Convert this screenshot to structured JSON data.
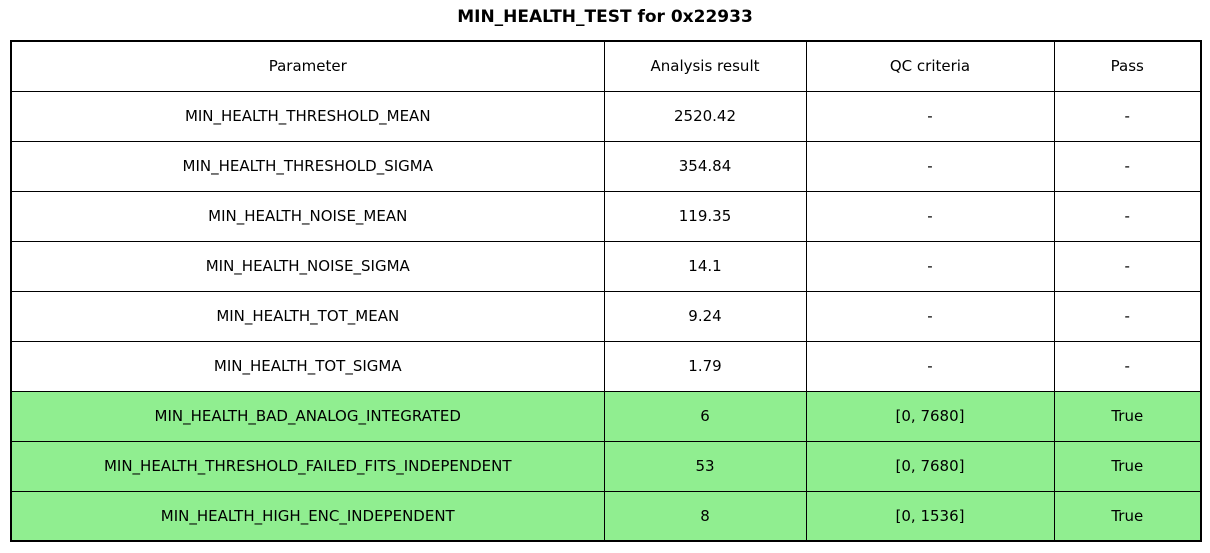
{
  "title": "MIN_HEALTH_TEST for 0x22933",
  "colors": {
    "pass_green": "#90EE90",
    "border": "#000000",
    "background": "#FFFFFF",
    "text": "#000000"
  },
  "chart_data": {
    "type": "table",
    "title": "MIN_HEALTH_TEST for 0x22933",
    "columns": [
      "Parameter",
      "Analysis result",
      "QC criteria",
      "Pass"
    ],
    "rows": [
      {
        "parameter": "MIN_HEALTH_THRESHOLD_MEAN",
        "analysis_result": "2520.42",
        "qc_criteria": "-",
        "pass": "-",
        "highlight": false
      },
      {
        "parameter": "MIN_HEALTH_THRESHOLD_SIGMA",
        "analysis_result": "354.84",
        "qc_criteria": "-",
        "pass": "-",
        "highlight": false
      },
      {
        "parameter": "MIN_HEALTH_NOISE_MEAN",
        "analysis_result": "119.35",
        "qc_criteria": "-",
        "pass": "-",
        "highlight": false
      },
      {
        "parameter": "MIN_HEALTH_NOISE_SIGMA",
        "analysis_result": "14.1",
        "qc_criteria": "-",
        "pass": "-",
        "highlight": false
      },
      {
        "parameter": "MIN_HEALTH_TOT_MEAN",
        "analysis_result": "9.24",
        "qc_criteria": "-",
        "pass": "-",
        "highlight": false
      },
      {
        "parameter": "MIN_HEALTH_TOT_SIGMA",
        "analysis_result": "1.79",
        "qc_criteria": "-",
        "pass": "-",
        "highlight": false
      },
      {
        "parameter": "MIN_HEALTH_BAD_ANALOG_INTEGRATED",
        "analysis_result": "6",
        "qc_criteria": "[0, 7680]",
        "pass": "True",
        "highlight": true
      },
      {
        "parameter": "MIN_HEALTH_THRESHOLD_FAILED_FITS_INDEPENDENT",
        "analysis_result": "53",
        "qc_criteria": "[0, 7680]",
        "pass": "True",
        "highlight": true
      },
      {
        "parameter": "MIN_HEALTH_HIGH_ENC_INDEPENDENT",
        "analysis_result": "8",
        "qc_criteria": "[0, 1536]",
        "pass": "True",
        "highlight": true
      }
    ]
  }
}
